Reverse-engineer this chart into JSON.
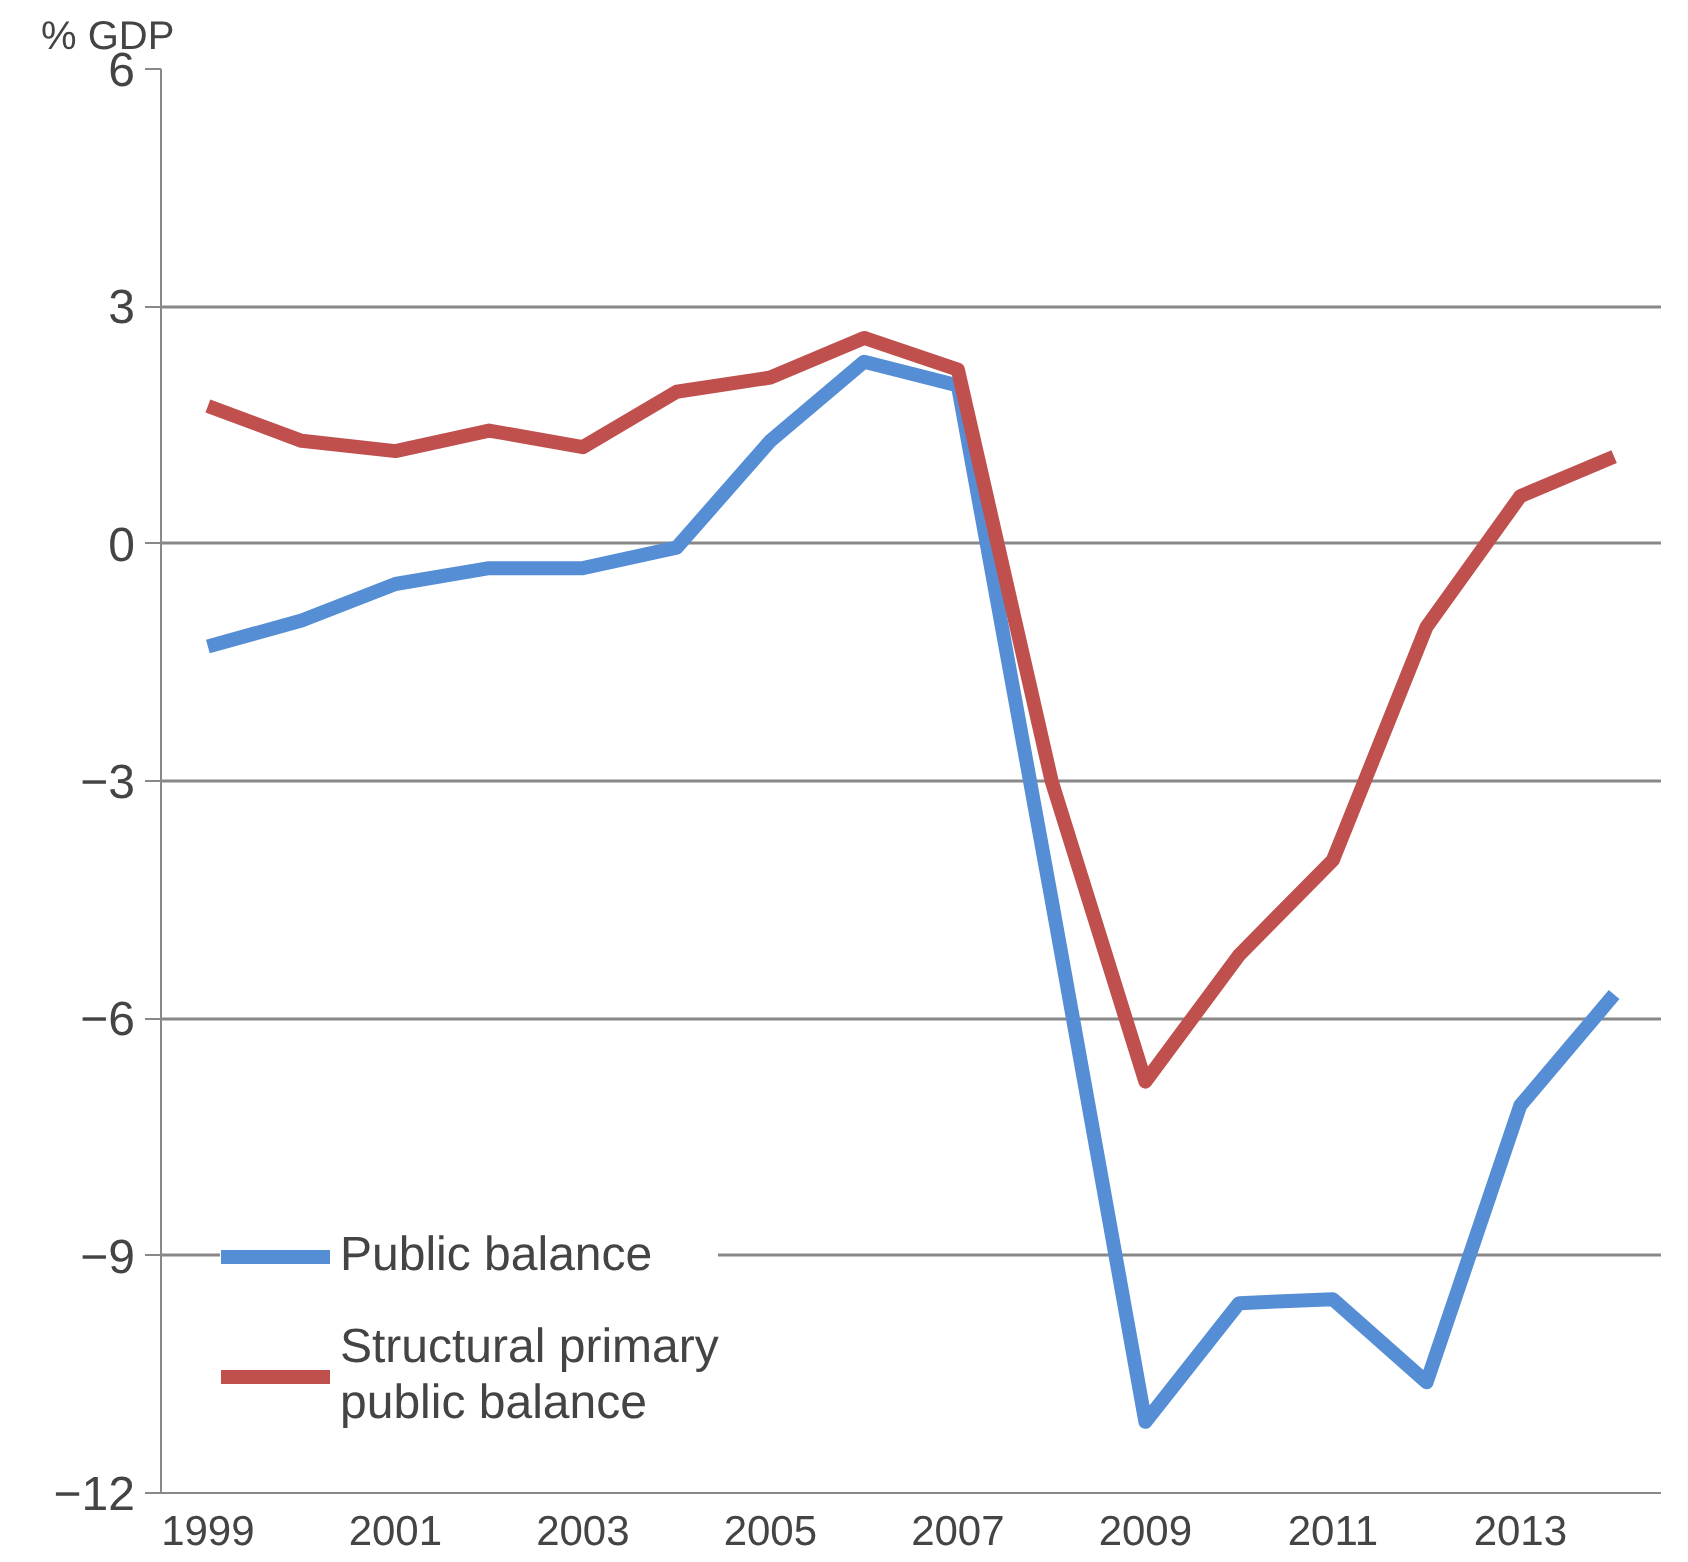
{
  "chart_data": {
    "type": "line",
    "ylabel": "% GDP",
    "x": [
      1999,
      2000,
      2001,
      2002,
      2003,
      2004,
      2005,
      2006,
      2007,
      2008,
      2009,
      2010,
      2011,
      2012,
      2013,
      2014
    ],
    "xlim": [
      1998.5,
      2014.5
    ],
    "xticks": [
      1999,
      2001,
      2003,
      2005,
      2007,
      2009,
      2011,
      2013
    ],
    "ylim": [
      -12,
      6
    ],
    "yticks": [
      -12,
      -9,
      -6,
      -3,
      0,
      3,
      6
    ],
    "grid": "y",
    "legend": "bottom left",
    "series": [
      {
        "name": "Public balance",
        "color": "#558ed5",
        "values": [
          -1.3,
          -0.97,
          -0.51,
          -0.31,
          -0.31,
          -0.05,
          1.3,
          2.3,
          2.0,
          -4.5,
          -11.1,
          -9.6,
          -9.55,
          -10.6,
          -7.1,
          -5.7
        ]
      },
      {
        "name": "Structural primary public balance",
        "color": "#c0504d",
        "values": [
          1.74,
          1.3,
          1.17,
          1.43,
          1.22,
          1.92,
          2.1,
          2.6,
          2.2,
          -3.0,
          -6.8,
          -5.2,
          -4.0,
          -1.05,
          0.6,
          1.1
        ]
      }
    ]
  }
}
